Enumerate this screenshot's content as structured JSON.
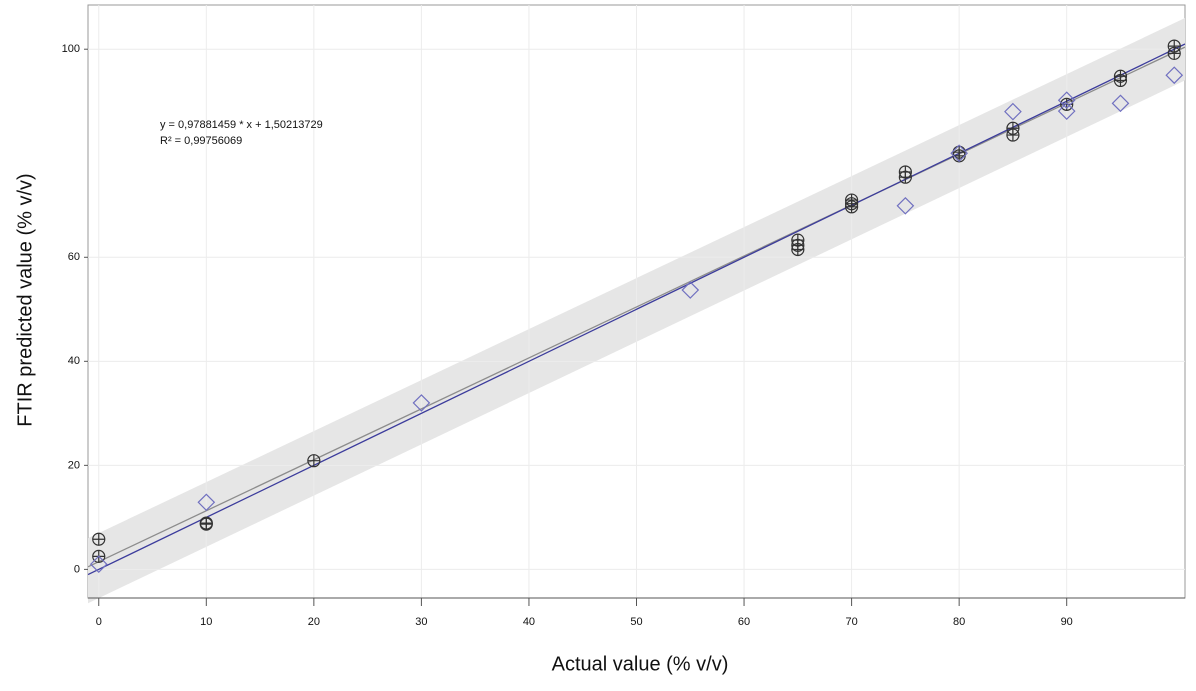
{
  "chart_data": {
    "type": "scatter",
    "annotations": [
      "y = 0,97881459 * x + 1,50213729",
      "R² = 0,99756069"
    ],
    "x_label": "Actual value (% v/v)",
    "y_label": "FTIR predicted value (% v/v)",
    "xlim": [
      -1,
      101
    ],
    "ylim": [
      -5.5,
      108.5
    ],
    "xticks": [
      0,
      10,
      20,
      30,
      40,
      50,
      60,
      70,
      80,
      90
    ],
    "yticks": [
      0,
      20,
      40,
      60,
      100
    ],
    "grid": true,
    "band": {
      "color": "#e6e6e6",
      "x": [
        -1,
        101
      ],
      "lower": [
        -6.5,
        94
      ],
      "upper": [
        6,
        106
      ]
    },
    "lines": [
      {
        "color": "#8c8c8c",
        "x": [
          -1,
          101
        ],
        "values": [
          0.5,
          100.4
        ]
      },
      {
        "color": "#3c3c9c",
        "x": [
          -1,
          101
        ],
        "values": [
          -1,
          101
        ]
      }
    ],
    "series": [
      {
        "marker": "circle-cross",
        "color": "#333333",
        "x": [
          0,
          0,
          10,
          10,
          20,
          65,
          65,
          65,
          70,
          70,
          70,
          75,
          75,
          80,
          80,
          85,
          85,
          90,
          95,
          95,
          100,
          100
        ],
        "values": [
          5.8,
          2.5,
          8.9,
          8.7,
          20.9,
          63.3,
          62.3,
          61.5,
          71,
          70.3,
          69.7,
          76.4,
          75.4,
          80.2,
          79.5,
          84.8,
          83.5,
          89.4,
          94.8,
          94,
          100.6,
          99.2
        ]
      },
      {
        "marker": "diamond",
        "color": "#7070c0",
        "x": [
          0,
          10,
          30,
          55,
          75,
          80,
          85,
          90,
          90,
          95,
          100
        ],
        "values": [
          1,
          12.9,
          32,
          53.7,
          69.9,
          80,
          88,
          90.2,
          88.1,
          89.6,
          95
        ]
      }
    ]
  }
}
